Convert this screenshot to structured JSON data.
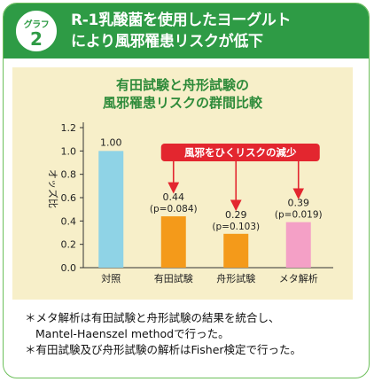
{
  "header": {
    "badge_label": "グラフ",
    "badge_number": "2",
    "title_line1": "R-1乳酸菌を使用したヨーグルト",
    "title_line2": "により風邪罹患リスクが低下"
  },
  "chart_title_line1": "有田試験と舟形試験の",
  "chart_title_line2": "風邪罹患リスクの群間比較",
  "callout": "風邪をひくリスクの減少",
  "colors": {
    "header_green": "#2e9b45",
    "panel_bg": "#f7efc9",
    "callout_red": "#e3262f",
    "bar_control": "#8fd3e6",
    "bar_arita": "#f49a1a",
    "bar_funagata": "#f49a1a",
    "bar_meta": "#f4a0c6"
  },
  "notes": [
    "＊メタ解析は有田試験と舟形試験の結果を統合し、",
    "Mantel-Haenszel methodで行った。",
    "＊有田試験及び舟形試験の解析はFisher検定で行った。"
  ],
  "chart_data": {
    "type": "bar",
    "ylabel": "オッズ比",
    "ylim": [
      0,
      1.2
    ],
    "yticks": [
      "0.0",
      "0.2",
      "0.4",
      "0.6",
      "0.8",
      "1.0",
      "1.2"
    ],
    "categories": [
      "対照",
      "有田試験",
      "舟形試験",
      "メタ解析"
    ],
    "values": [
      1.0,
      0.44,
      0.29,
      0.39
    ],
    "value_labels": [
      "1.00",
      "0.44",
      "0.29",
      "0.39"
    ],
    "p_labels": [
      "",
      "(p=0.084)",
      "(p=0.103)",
      "(p=0.019)"
    ],
    "grid": false
  }
}
